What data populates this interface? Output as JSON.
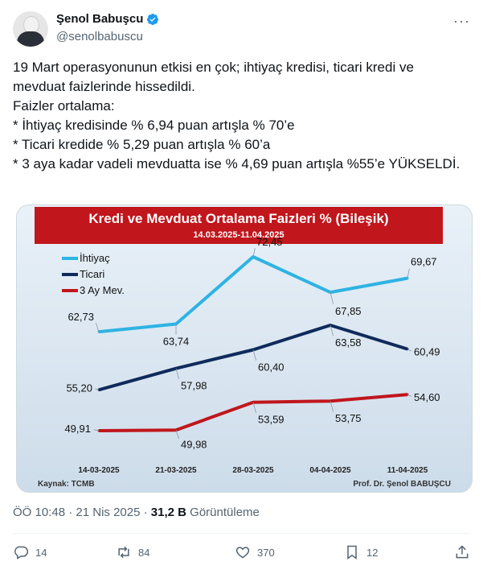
{
  "author": {
    "name": "Şenol Babuşcu",
    "handle": "@senolbabuscu"
  },
  "tweet_lines": [
    "19 Mart operasyonunun etkisi en çok; ihtiyaç kredisi, ticari kredi ve mevduat faizlerinde hissedildi.",
    "Faizler ortalama:",
    "*  İhtiyaç kredisinde % 6,94 puan artışla % 70’e",
    "* Ticari kredide % 5,29 puan artışla % 60’a",
    "* 3 aya kadar vadeli mevduatta ise % 4,69 puan artışla %55’e YÜKSELDİ."
  ],
  "chart": {
    "title": "Kredi ve Mevduat Ortalama Faizleri % (Bileşik)",
    "subtitle": "14.03.2025-11.04.2025",
    "source": "Kaynak: TCMB",
    "author_credit": "Prof. Dr. Şenol BABUŞCU",
    "categories": [
      "14-03-2025",
      "21-03-2025",
      "28-03-2025",
      "04-04-2025",
      "11-04-2025"
    ],
    "series": [
      {
        "name": "İhtiyaç",
        "color": "#2eb3e3",
        "values": [
          62.73,
          63.74,
          72.45,
          67.85,
          69.67
        ],
        "labels": [
          "62,73",
          "63,74",
          "72,45",
          "67,85",
          "69,67"
        ]
      },
      {
        "name": "Ticari",
        "color": "#0f2a5c",
        "values": [
          55.2,
          57.98,
          60.4,
          63.58,
          60.49
        ],
        "labels": [
          "55,20",
          "57,98",
          "60,40",
          "63,58",
          "60,49"
        ]
      },
      {
        "name": "3 Ay Mev.",
        "color": "#c0161c",
        "values": [
          49.91,
          49.98,
          53.59,
          53.75,
          54.6
        ],
        "labels": [
          "49,91",
          "49,98",
          "53,59",
          "53,75",
          "54,60"
        ]
      }
    ]
  },
  "meta": {
    "time": "ÖÖ 10:48",
    "sep": "·",
    "date": "21 Nis 2025",
    "views_count": "31,2 B",
    "views_label": "Görüntüleme"
  },
  "actions": {
    "replies": "14",
    "reposts": "84",
    "likes": "370",
    "bookmarks": "12"
  },
  "colors": {
    "accent": "#1d9bf0",
    "muted": "#536471",
    "banner": "#c0161c"
  }
}
